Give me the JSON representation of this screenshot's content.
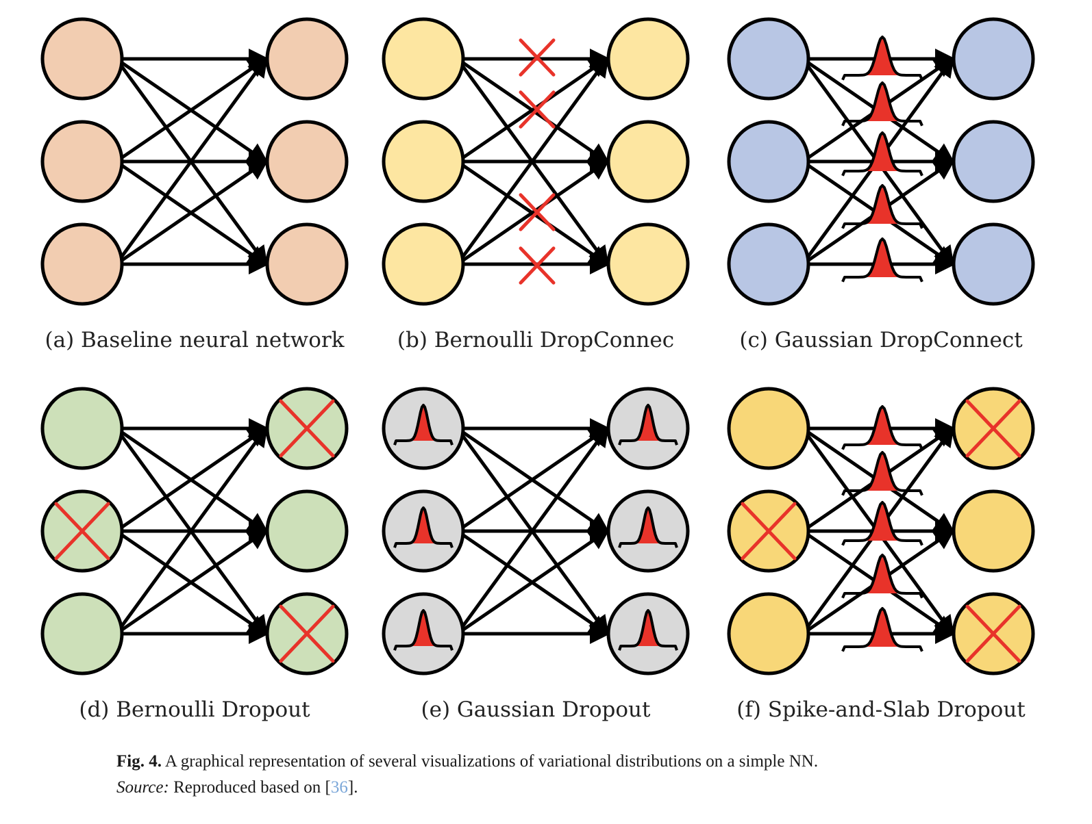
{
  "panels": [
    {
      "id": "a",
      "label": "(a) Baseline neural network",
      "node_color": "#f2cdb1",
      "edge_marks": [],
      "input_node_marks": [],
      "output_node_marks": [],
      "cross_color": "#e8332a",
      "bell_color": "#e8332a"
    },
    {
      "id": "b",
      "label": "(b) Bernoulli DropConnec",
      "node_color": "#fde6a1",
      "edge_marks": [
        "cross",
        "cross",
        "cross",
        "cross"
      ],
      "input_node_marks": [],
      "output_node_marks": [],
      "cross_color": "#e8332a",
      "bell_color": "#e8332a"
    },
    {
      "id": "c",
      "label": "(c) Gaussian DropConnect",
      "node_color": "#b8c6e4",
      "edge_marks": [
        "gaussian",
        "gaussian",
        "gaussian",
        "gaussian",
        "gaussian"
      ],
      "input_node_marks": [],
      "output_node_marks": [],
      "cross_color": "#e8332a",
      "bell_color": "#e8332a"
    },
    {
      "id": "d",
      "label": "(d) Bernoulli Dropout",
      "node_color": "#cde0b9",
      "edge_marks": [],
      "input_node_marks": [
        "none",
        "cross",
        "none"
      ],
      "output_node_marks": [
        "cross",
        "none",
        "cross"
      ],
      "cross_color": "#e8332a",
      "bell_color": "#e8332a"
    },
    {
      "id": "e",
      "label": "(e) Gaussian Dropout",
      "node_color": "#d9d9d9",
      "edge_marks": [],
      "input_node_marks": [
        "gaussian",
        "gaussian",
        "gaussian"
      ],
      "output_node_marks": [
        "gaussian",
        "gaussian",
        "gaussian"
      ],
      "cross_color": "#e8332a",
      "bell_color": "#e8332a"
    },
    {
      "id": "f",
      "label": "(f) Spike-and-Slab Dropout",
      "node_color": "#f8d778",
      "edge_marks": [
        "gaussian",
        "gaussian",
        "gaussian",
        "gaussian",
        "gaussian"
      ],
      "input_node_marks": [
        "none",
        "cross",
        "none"
      ],
      "output_node_marks": [
        "cross",
        "none",
        "cross"
      ],
      "cross_color": "#e8332a",
      "bell_color": "#e8332a"
    }
  ],
  "caption": {
    "fig_label": "Fig. 4.",
    "text": "A graphical representation of several visualizations of variational distributions on a simple NN.",
    "source_label": "Source:",
    "source_text_before": "Reproduced based on [",
    "source_ref": "36",
    "source_text_after": "]."
  }
}
